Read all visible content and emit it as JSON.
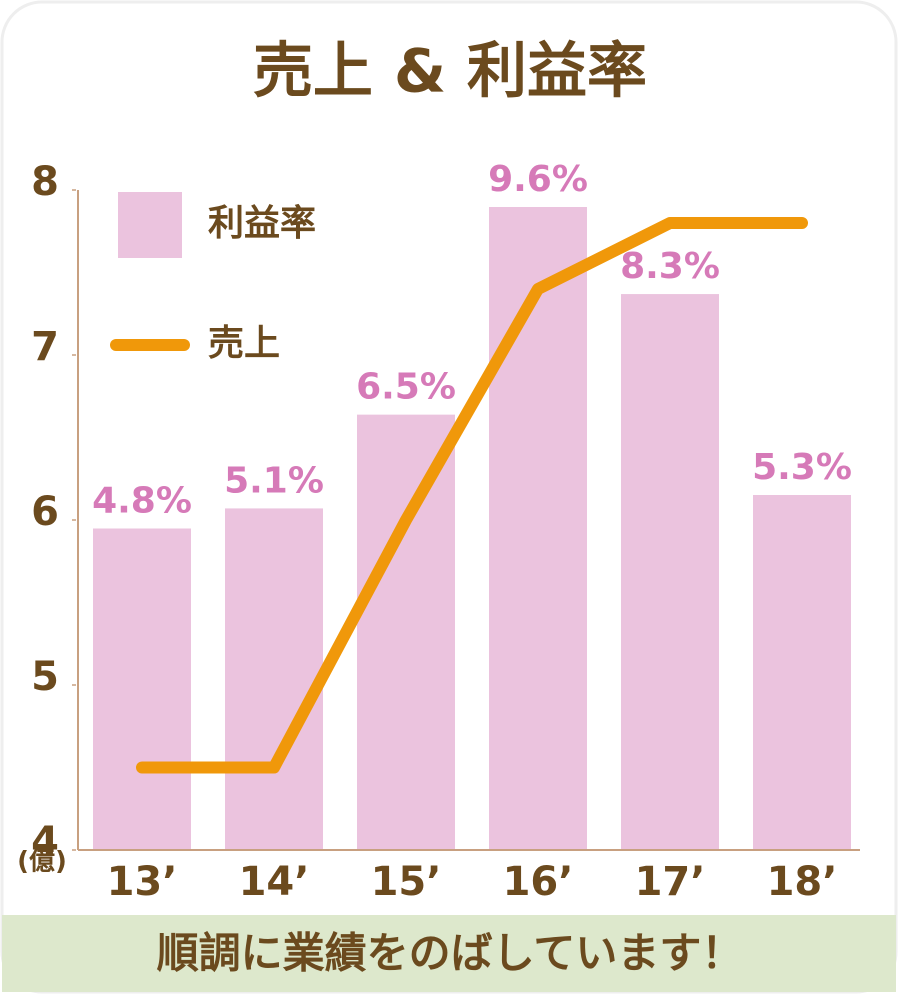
{
  "chart_data": {
    "type": "bar",
    "title": "売上 & 利益率",
    "categories": [
      "13’",
      "14’",
      "15’",
      "16’",
      "17’",
      "18’"
    ],
    "series": [
      {
        "name": "利益率",
        "type": "bar",
        "color": "#ebc3de",
        "label_color": "#d67ab8",
        "values": [
          4.8,
          5.1,
          6.5,
          9.6,
          8.3,
          5.3
        ],
        "value_labels": [
          "4.8%",
          "5.1%",
          "6.5%",
          "9.6%",
          "8.3%",
          "5.3%"
        ]
      },
      {
        "name": "売上",
        "type": "line",
        "color": "#f0980a",
        "values": [
          4.5,
          4.5,
          6.0,
          7.4,
          7.8,
          7.8
        ]
      }
    ],
    "ylim": [
      4,
      8
    ],
    "yticks": [
      4,
      5,
      6,
      7,
      8
    ],
    "y_unit": "(億)",
    "footer": "順調に業績をのばしています！"
  }
}
